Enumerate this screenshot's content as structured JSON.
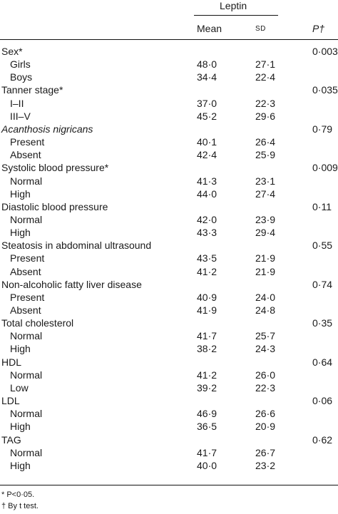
{
  "header": {
    "group": "Leptin",
    "mean": "Mean",
    "sd": "SD",
    "p": "P†"
  },
  "rows": [
    {
      "label": "Sex*",
      "p": "0·003"
    },
    {
      "label": "Girls",
      "mean": "48·0",
      "sd": "27·1",
      "sub": true
    },
    {
      "label": "Boys",
      "mean": "34·4",
      "sd": "22·4",
      "sub": true
    },
    {
      "label": "Tanner stage*",
      "p": "0·035"
    },
    {
      "label": "I–II",
      "mean": "37·0",
      "sd": "22·3",
      "sub": true
    },
    {
      "label": "III–V",
      "mean": "45·2",
      "sd": "29·6",
      "sub": true
    },
    {
      "label": "Acanthosis nigricans",
      "p": "0·79",
      "italic": true
    },
    {
      "label": "Present",
      "mean": "40·1",
      "sd": "26·4",
      "sub": true
    },
    {
      "label": "Absent",
      "mean": "42·4",
      "sd": "25·9",
      "sub": true
    },
    {
      "label": "Systolic blood pressure*",
      "p": "0·009"
    },
    {
      "label": "Normal",
      "mean": "41·3",
      "sd": "23·1",
      "sub": true
    },
    {
      "label": "High",
      "mean": "44·0",
      "sd": "27·4",
      "sub": true
    },
    {
      "label": "Diastolic blood pressure",
      "p": "0·11"
    },
    {
      "label": "Normal",
      "mean": "42·0",
      "sd": "23·9",
      "sub": true
    },
    {
      "label": "High",
      "mean": "43·3",
      "sd": "29·4",
      "sub": true
    },
    {
      "label": "Steatosis in abdominal ultrasound",
      "p": "0·55"
    },
    {
      "label": "Present",
      "mean": "43·5",
      "sd": "21·9",
      "sub": true
    },
    {
      "label": "Absent",
      "mean": "41·2",
      "sd": "21·9",
      "sub": true
    },
    {
      "label": "Non-alcoholic fatty liver disease",
      "p": "0·74"
    },
    {
      "label": "Present",
      "mean": "40·9",
      "sd": "24·0",
      "sub": true
    },
    {
      "label": "Absent",
      "mean": "41·9",
      "sd": "24·8",
      "sub": true
    },
    {
      "label": "Total cholesterol",
      "p": "0·35"
    },
    {
      "label": "Normal",
      "mean": "41·7",
      "sd": "25·7",
      "sub": true
    },
    {
      "label": "High",
      "mean": "38·2",
      "sd": "24·3",
      "sub": true
    },
    {
      "label": "HDL",
      "p": "0·64"
    },
    {
      "label": "Normal",
      "mean": "41·2",
      "sd": "26·0",
      "sub": true
    },
    {
      "label": "Low",
      "mean": "39·2",
      "sd": "22·3",
      "sub": true
    },
    {
      "label": "LDL",
      "p": "0·06"
    },
    {
      "label": "Normal",
      "mean": "46·9",
      "sd": "26·6",
      "sub": true
    },
    {
      "label": "High",
      "mean": "36·5",
      "sd": "20·9",
      "sub": true
    },
    {
      "label": "TAG",
      "p": "0·62"
    },
    {
      "label": "Normal",
      "mean": "41·7",
      "sd": "26·7",
      "sub": true
    },
    {
      "label": "High",
      "mean": "40·0",
      "sd": "23·2",
      "sub": true
    }
  ],
  "footnotes": [
    "* P<0·05.",
    "† By t test."
  ]
}
